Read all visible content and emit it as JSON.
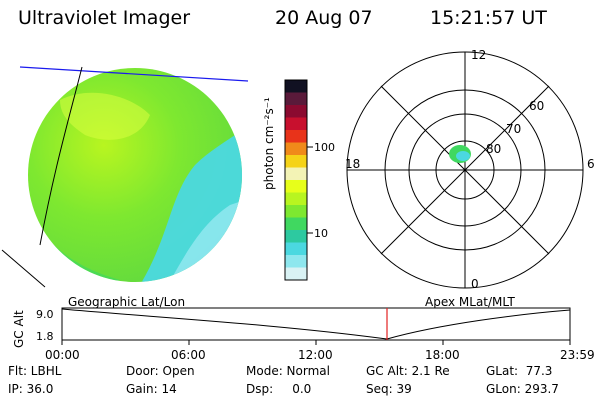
{
  "header": {
    "instrument": "Ultraviolet Imager",
    "date": "20 Aug 07",
    "time": "15:21:57 UT"
  },
  "panels": {
    "left_caption": "Geographic Lat/Lon",
    "right_caption": "Apex MLat/MLT"
  },
  "colorbar": {
    "unit_label": "photon cm⁻²s⁻¹",
    "scale": "log",
    "ticks": [
      "100",
      "10"
    ],
    "colors": [
      "#111122",
      "#5a1a3a",
      "#8b0a30",
      "#c8102e",
      "#e8331a",
      "#f08a1a",
      "#f5d318",
      "#f3f3b5",
      "#e7ff1a",
      "#b8f520",
      "#7ee830",
      "#40d860",
      "#2dc9a0",
      "#4bd8e0",
      "#8ee7ee",
      "#d9f2f4"
    ]
  },
  "polar_plot": {
    "mlt_labels": [
      "12",
      "6",
      "0",
      "18"
    ],
    "mlat_labels": [
      "60",
      "70",
      "80"
    ]
  },
  "timeline": {
    "axis_label": "GC Alt",
    "y_ticks": [
      "9.0",
      "1.8"
    ],
    "x_ticks": [
      "00:00",
      "06:00",
      "12:00",
      "18:00",
      "23:59"
    ],
    "current_time": "15:21:57"
  },
  "info": {
    "filter": "Flt: LBHL",
    "ip": "IP: 36.0",
    "door": "Door: Open",
    "gain": "Gain: 14",
    "mode": "Mode: Normal",
    "dsp": "Dsp:     0.0",
    "gc_alt": "GC Alt: 2.1 Re",
    "seq": "Seq: 39",
    "glat": "GLat:  77.3",
    "glon": "GLon: 293.7"
  }
}
